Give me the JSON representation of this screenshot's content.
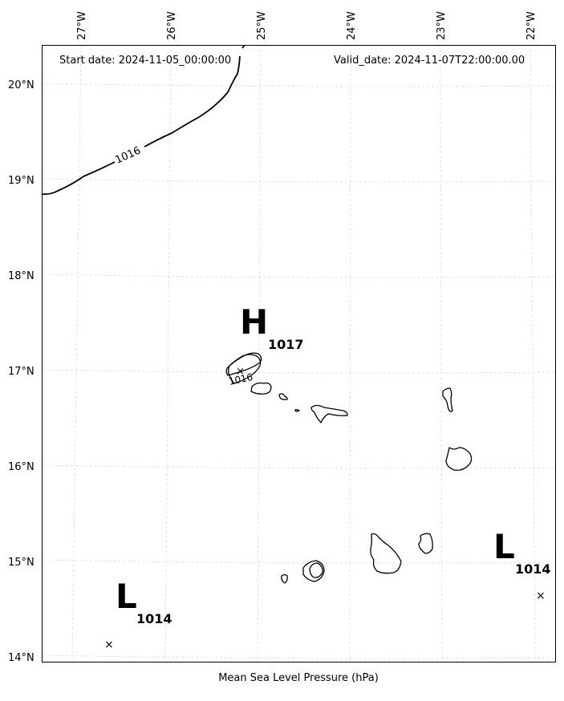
{
  "header": {
    "start_date": "Start date: 2024-11-05_00:00:00",
    "valid_date": "Valid_date: 2024-11-07T22:00:00.00"
  },
  "footer": {
    "caption": "Mean Sea Level Pressure (hPa)"
  },
  "axes": {
    "lon_labels": [
      "27°W",
      "26°W",
      "25°W",
      "24°W",
      "23°W",
      "22°W"
    ],
    "lat_labels": [
      "20°N",
      "19°N",
      "18°N",
      "17°N",
      "16°N",
      "15°N",
      "14°N"
    ]
  },
  "pressure_centers": [
    {
      "type": "H",
      "value": "1017",
      "lon": -25.1,
      "lat": 17.0
    },
    {
      "type": "L",
      "value": "1014",
      "lon": -22.1,
      "lat": 14.65
    },
    {
      "type": "L",
      "value": "1014",
      "lon": -26.5,
      "lat": 14.15
    }
  ],
  "isobars": [
    {
      "value": "1016",
      "label_location": "north-west"
    },
    {
      "value": "1016",
      "label_location": "around Santo Antão"
    }
  ]
}
